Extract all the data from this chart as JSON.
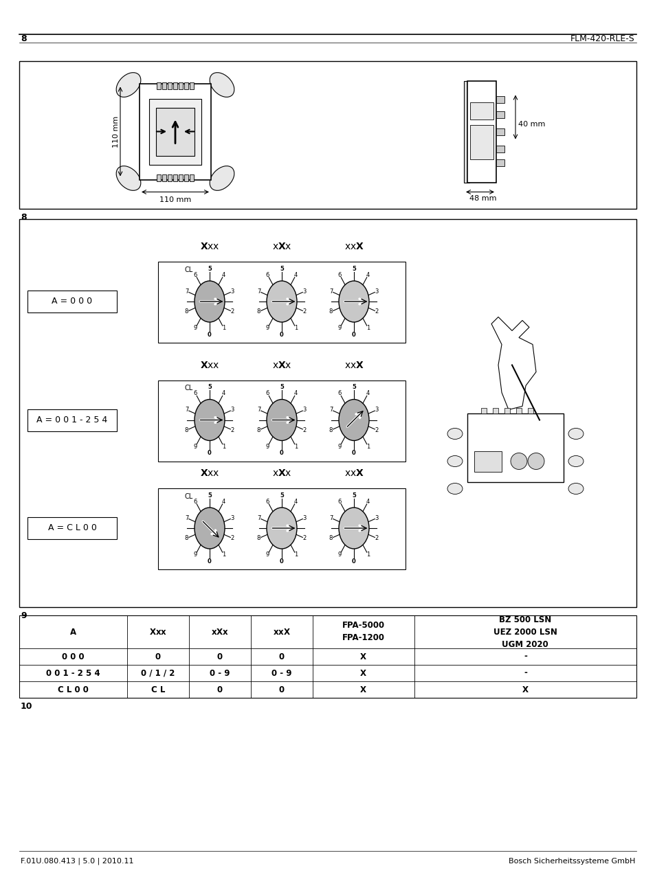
{
  "page_number": "8",
  "header_right": "FLM-420-RLE-S",
  "footer_left": "F.01U.080.413 | 5.0 | 2010.11",
  "footer_right": "Bosch Sicherheitssysteme GmbH",
  "fig1_label": "8",
  "fig2_label": "9",
  "fig3_label": "10",
  "dim_110_v": "110 mm",
  "dim_110_h": "110 mm",
  "dim_40": "40 mm",
  "dim_48": "48 mm",
  "label_A000": "A = 0 0 0",
  "label_A001": "A = 0 0 1 - 2 5 4",
  "label_ACL": "A = C L 0 0",
  "table_hdr_A": "A",
  "table_hdr_Xxx": "X",
  "table_hdr_xXx": "xX",
  "table_hdr_xxX": "xxX",
  "table_hdr_FPA": "FPA-5000\nFPA-1200",
  "table_hdr_BZ": "BZ 500 LSN\nUEZ 2000 LSN\nUGM 2020",
  "table_row1": [
    "0 0 0",
    "0",
    "0",
    "0",
    "X",
    "-"
  ],
  "table_row2": [
    "0 0 1 - 2 5 4",
    "0 / 1 / 2",
    "0 - 9",
    "0 - 9",
    "X",
    "-"
  ],
  "table_row3": [
    "C L 0 0",
    "C L",
    "0",
    "0",
    "X",
    "X"
  ],
  "bg_color": "#ffffff",
  "border_color": "#000000",
  "gray_dial": "#b8b8b8",
  "white_dial": "#d8d8d8"
}
